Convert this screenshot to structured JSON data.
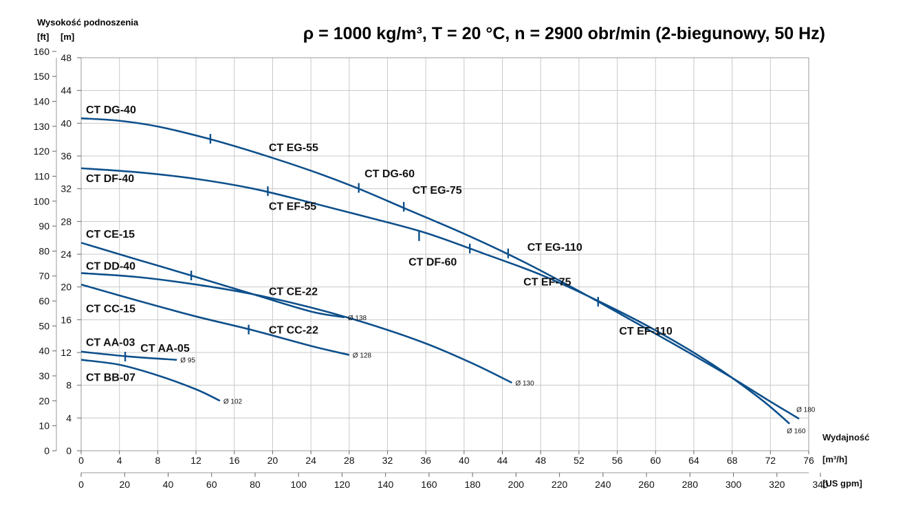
{
  "chart_data": {
    "type": "line",
    "title": "ρ = 1000 kg/m³, T = 20 °C, n = 2900 obr/min (2-biegunowy, 50 Hz)",
    "ylabel": "Wysokość podnoszenia",
    "y_units": [
      "[ft]",
      "[m]"
    ],
    "xlabel": "Wydajność",
    "x_units": [
      "[m³/h]",
      "[US gpm]"
    ],
    "xlim_m3h": [
      0,
      76
    ],
    "ylim_m": [
      0,
      48
    ],
    "ylim_ft": [
      0,
      160
    ],
    "x_ticks_m3h": [
      "0",
      "4",
      "8",
      "12",
      "16",
      "20",
      "24",
      "28",
      "32",
      "36",
      "40",
      "44",
      "48",
      "52",
      "56",
      "60",
      "64",
      "68",
      "72",
      "76"
    ],
    "x_ticks_gpm": [
      "0",
      "20",
      "40",
      "60",
      "80",
      "100",
      "120",
      "140",
      "160",
      "180",
      "200",
      "220",
      "240",
      "260",
      "280",
      "300",
      "320",
      "340"
    ],
    "y_ticks_m": [
      "0",
      "4",
      "8",
      "12",
      "16",
      "20",
      "24",
      "28",
      "32",
      "36",
      "40",
      "44",
      "48"
    ],
    "y_ticks_ft": [
      "0",
      "10",
      "20",
      "30",
      "40",
      "50",
      "60",
      "70",
      "80",
      "90",
      "100",
      "110",
      "120",
      "130",
      "140",
      "150",
      "160"
    ],
    "grid": true,
    "series": [
      {
        "name": "Ø 180",
        "curve_label": "Ø 180",
        "color": "#0d4f8b",
        "x": [
          0,
          4,
          8,
          13,
          18,
          24,
          29,
          34,
          40,
          46,
          52,
          58,
          63,
          68,
          72,
          75
        ],
        "y": [
          40.6,
          40.3,
          39.6,
          38.2,
          36.5,
          34.2,
          32,
          29.5,
          26.5,
          23.2,
          19.5,
          15.6,
          12.3,
          8.9,
          6,
          3.9
        ]
      },
      {
        "name": "Ø 160",
        "curve_label": "Ø 160",
        "color": "#0d4f8b",
        "x": [
          0,
          6,
          12,
          18,
          24,
          30,
          36,
          42,
          48,
          54,
          60,
          66,
          71,
          74
        ],
        "y": [
          34.5,
          34.0,
          33.2,
          32.0,
          30.3,
          28.5,
          26.6,
          24.1,
          21.5,
          18.3,
          14.7,
          10.5,
          6.3,
          3.3
        ]
      },
      {
        "name": "Ø 138",
        "curve_label": "Ø 138",
        "color": "#0d4f8b",
        "x": [
          0,
          6,
          11.5,
          18,
          24,
          27.5
        ],
        "y": [
          25.4,
          23.3,
          21.4,
          19.1,
          17,
          16.3
        ]
      },
      {
        "name": "Ø 130",
        "curve_label": "Ø 130",
        "color": "#0d4f8b",
        "x": [
          0,
          6,
          12,
          18,
          24,
          30,
          36,
          41,
          45
        ],
        "y": [
          21.7,
          21.2,
          20.3,
          19.1,
          17.5,
          15.5,
          13.1,
          10.6,
          8.3
        ]
      },
      {
        "name": "Ø 128",
        "curve_label": "Ø 128",
        "color": "#0d4f8b",
        "x": [
          0,
          6,
          12,
          18,
          24,
          28
        ],
        "y": [
          20.3,
          18.3,
          16.4,
          14.7,
          12.8,
          11.7
        ]
      },
      {
        "name": "Ø 95",
        "curve_label": "Ø 95",
        "color": "#0d4f8b",
        "x": [
          0,
          5,
          10
        ],
        "y": [
          12.1,
          11.5,
          11.1
        ]
      },
      {
        "name": "Ø 102",
        "curve_label": "Ø 102",
        "color": "#0d4f8b",
        "x": [
          0,
          4,
          8,
          12,
          14.5
        ],
        "y": [
          11.1,
          10.5,
          9.2,
          7.5,
          6.1
        ]
      }
    ],
    "transition_marks": [
      {
        "series": "Ø 180",
        "x": 13.5,
        "y": 38.1
      },
      {
        "series": "Ø 180",
        "x": 29,
        "y": 32.1
      },
      {
        "series": "Ø 180",
        "x": 33.7,
        "y": 29.8
      },
      {
        "series": "Ø 180",
        "x": 44.6,
        "y": 24.1
      },
      {
        "series": "Ø 160",
        "x": 19.5,
        "y": 31.7
      },
      {
        "series": "Ø 160",
        "x": 35.3,
        "y": 26.2
      },
      {
        "series": "Ø 160",
        "x": 40.6,
        "y": 24.7
      },
      {
        "series": "Ø 160",
        "x": 54,
        "y": 18.2
      },
      {
        "series": "Ø 138",
        "x": 11.5,
        "y": 21.4
      },
      {
        "series": "Ø 128",
        "x": 17.5,
        "y": 14.8
      },
      {
        "series": "Ø 95",
        "x": 4.6,
        "y": 11.5
      }
    ],
    "annotations": [
      {
        "text": "CT DG-40",
        "x": 0.5,
        "y": 41.2
      },
      {
        "text": "CT EG-55",
        "x": 19.6,
        "y": 36.6
      },
      {
        "text": "CT DG-60",
        "x": 29.6,
        "y": 33.4
      },
      {
        "text": "CT EG-75",
        "x": 34.6,
        "y": 31.4
      },
      {
        "text": "CT EG-110",
        "x": 46.6,
        "y": 24.4
      },
      {
        "text": "CT DF-40",
        "x": 0.5,
        "y": 32.8
      },
      {
        "text": "CT EF-55",
        "x": 19.6,
        "y": 29.4
      },
      {
        "text": "CT DF-60",
        "x": 34.2,
        "y": 22.6
      },
      {
        "text": "CT EF-75",
        "x": 46.2,
        "y": 20.2
      },
      {
        "text": "CT EF-110",
        "x": 56.2,
        "y": 14.2
      },
      {
        "text": "CT CE-15",
        "x": 0.5,
        "y": 26.0
      },
      {
        "text": "CT CE-22",
        "x": 19.6,
        "y": 19.0
      },
      {
        "text": "CT DD-40",
        "x": 0.5,
        "y": 22.1
      },
      {
        "text": "CT CC-15",
        "x": 0.5,
        "y": 16.9
      },
      {
        "text": "CT CC-22",
        "x": 19.6,
        "y": 14.3
      },
      {
        "text": "CT AA-03",
        "x": 0.5,
        "y": 12.8
      },
      {
        "text": "CT AA-05",
        "x": 6.2,
        "y": 12.1
      },
      {
        "text": "CT BB-07",
        "x": 0.5,
        "y": 8.5
      }
    ]
  }
}
